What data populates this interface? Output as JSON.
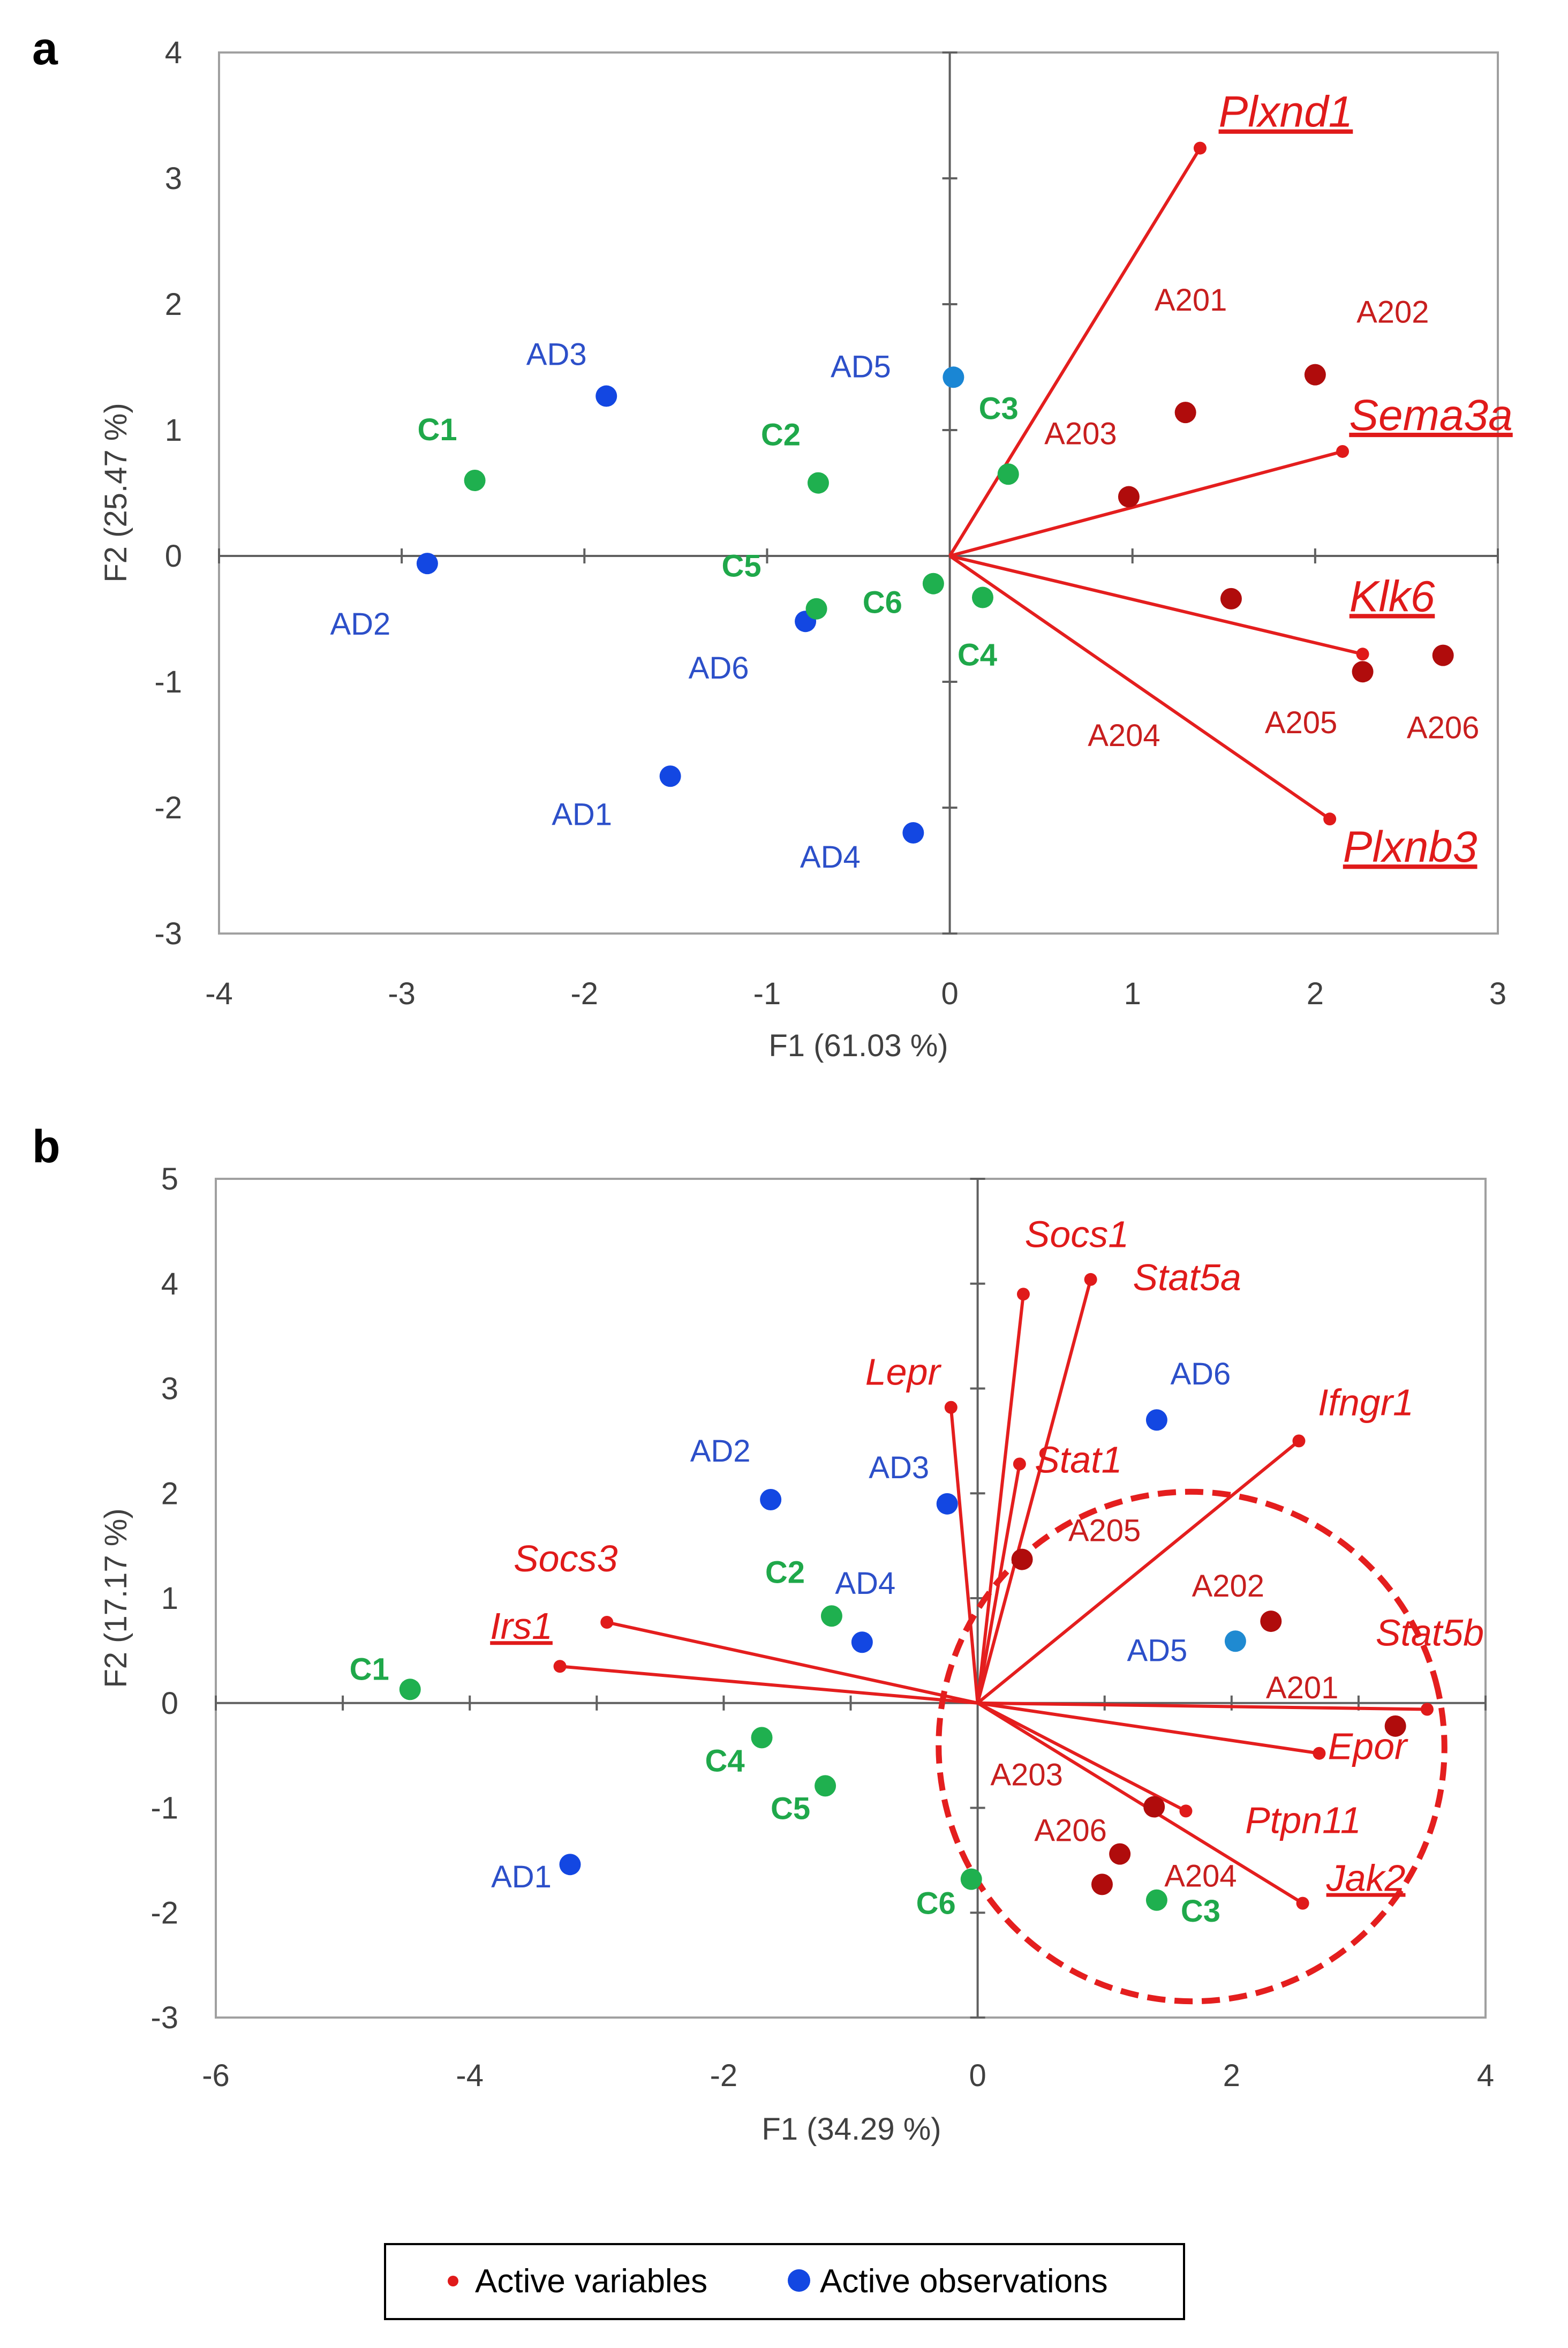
{
  "colors": {
    "variable": "#e01a1a",
    "variable_line": "#e41e1e",
    "sample_obs": "#b00c0c",
    "sample_label": "#c81e1e",
    "ad_obs": "#1347e2",
    "ad_label": "#2c4fc9",
    "ctrl_obs": "#1fb04f",
    "ctrl_label": "#1fa84a",
    "ad5_obs_a": "#1a86d4",
    "ad5_obs_b": "#1f8ad1",
    "axis": "#606060",
    "border": "#a0a0a0"
  },
  "legend": {
    "variables_label": "Active variables",
    "observations_label": "Active observations"
  },
  "chart_data": [
    {
      "type": "scatter",
      "panel_label": "a",
      "title": "",
      "xlabel": "F1 (61.03 %)",
      "ylabel": "F2 (25.47 %)",
      "xlim": [
        -4,
        3
      ],
      "ylim": [
        -3,
        4
      ],
      "x_ticks": [
        "-4",
        "-3",
        "-2",
        "-1",
        "0",
        "1",
        "2",
        "3"
      ],
      "y_ticks": [
        "4",
        "3",
        "2",
        "1",
        "0",
        "-1",
        "-2",
        "-3"
      ],
      "variables": [
        {
          "name": "Plxnd1",
          "x": 1.37,
          "y": 3.24,
          "underline": true
        },
        {
          "name": "Sema3a",
          "x": 2.15,
          "y": 0.83,
          "underline": true
        },
        {
          "name": "Klk6",
          "x": 2.26,
          "y": -0.78,
          "underline": true
        },
        {
          "name": "Plxnb3",
          "x": 2.08,
          "y": -2.09,
          "underline": true
        }
      ],
      "observations": [
        {
          "name": "A201",
          "x": 1.29,
          "y": 1.14,
          "group": "sample"
        },
        {
          "name": "A202",
          "x": 2.0,
          "y": 1.44,
          "group": "sample"
        },
        {
          "name": "A203",
          "x": 0.98,
          "y": 0.47,
          "group": "sample"
        },
        {
          "name": "A204",
          "x": 1.54,
          "y": -0.34,
          "group": "sample"
        },
        {
          "name": "A205",
          "x": 2.26,
          "y": -0.92,
          "group": "sample"
        },
        {
          "name": "A206",
          "x": 2.7,
          "y": -0.79,
          "group": "sample"
        },
        {
          "name": "AD1",
          "x": -1.53,
          "y": -1.75,
          "group": "ad"
        },
        {
          "name": "AD2",
          "x": -2.86,
          "y": -0.06,
          "group": "ad"
        },
        {
          "name": "AD3",
          "x": -1.88,
          "y": 1.27,
          "group": "ad"
        },
        {
          "name": "AD4",
          "x": -0.2,
          "y": -2.2,
          "group": "ad"
        },
        {
          "name": "AD5",
          "x": 0.02,
          "y": 1.42,
          "group": "ad5"
        },
        {
          "name": "AD6",
          "x": -0.79,
          "y": -0.52,
          "group": "ad"
        },
        {
          "name": "C1",
          "x": -2.6,
          "y": 0.6,
          "group": "ctrl"
        },
        {
          "name": "C2",
          "x": -0.72,
          "y": 0.58,
          "group": "ctrl"
        },
        {
          "name": "C3",
          "x": 0.32,
          "y": 0.65,
          "group": "ctrl"
        },
        {
          "name": "C4",
          "x": 0.18,
          "y": -0.33,
          "group": "ctrl"
        },
        {
          "name": "C5",
          "x": -0.73,
          "y": -0.42,
          "group": "ctrl"
        },
        {
          "name": "C6",
          "x": -0.09,
          "y": -0.22,
          "group": "ctrl"
        }
      ]
    },
    {
      "type": "scatter",
      "panel_label": "b",
      "title": "",
      "xlabel": "F1 (34.29 %)",
      "ylabel": "F2 (17.17 %)",
      "xlim": [
        -6,
        4
      ],
      "ylim": [
        -3,
        5
      ],
      "x_ticks": [
        "-6",
        "-4",
        "-2",
        "0",
        "2",
        "4"
      ],
      "y_ticks": [
        "5",
        "4",
        "3",
        "2",
        "1",
        "0",
        "-1",
        "-2",
        "-3"
      ],
      "variables": [
        {
          "name": "Socs1",
          "x": 0.36,
          "y": 3.9,
          "underline": false
        },
        {
          "name": "Stat5a",
          "x": 0.89,
          "y": 4.04,
          "underline": false
        },
        {
          "name": "Lepr",
          "x": -0.21,
          "y": 2.82,
          "underline": false
        },
        {
          "name": "Stat1",
          "x": 0.33,
          "y": 2.28,
          "underline": false
        },
        {
          "name": "Ifngr1",
          "x": 2.53,
          "y": 2.5,
          "underline": false
        },
        {
          "name": "Socs3",
          "x": -2.92,
          "y": 0.77,
          "underline": false
        },
        {
          "name": "Irs1",
          "x": -3.29,
          "y": 0.35,
          "underline": true
        },
        {
          "name": "Stat5b",
          "x": 3.54,
          "y": -0.06,
          "underline": false
        },
        {
          "name": "Epor",
          "x": 2.69,
          "y": -0.48,
          "underline": false
        },
        {
          "name": "Ptpn11",
          "x": 1.64,
          "y": -1.03,
          "underline": false
        },
        {
          "name": "Jak2",
          "x": 2.56,
          "y": -1.91,
          "underline": true
        }
      ],
      "observations": [
        {
          "name": "A201",
          "x": 3.29,
          "y": -0.22,
          "group": "sample"
        },
        {
          "name": "A202",
          "x": 2.31,
          "y": 0.78,
          "group": "sample"
        },
        {
          "name": "A203",
          "x": 1.39,
          "y": -0.99,
          "group": "sample"
        },
        {
          "name": "A204",
          "x": 0.98,
          "y": -1.73,
          "group": "sample"
        },
        {
          "name": "A205",
          "x": 0.35,
          "y": 1.37,
          "group": "sample"
        },
        {
          "name": "A206",
          "x": 1.12,
          "y": -1.44,
          "group": "sample"
        },
        {
          "name": "AD1",
          "x": -3.21,
          "y": -1.54,
          "group": "ad"
        },
        {
          "name": "AD2",
          "x": -1.63,
          "y": 1.94,
          "group": "ad"
        },
        {
          "name": "AD3",
          "x": -0.24,
          "y": 1.9,
          "group": "ad"
        },
        {
          "name": "AD4",
          "x": -0.91,
          "y": 0.58,
          "group": "ad"
        },
        {
          "name": "AD5",
          "x": 2.03,
          "y": 0.59,
          "group": "ad5"
        },
        {
          "name": "AD6",
          "x": 1.41,
          "y": 2.7,
          "group": "ad"
        },
        {
          "name": "C1",
          "x": -4.47,
          "y": 0.13,
          "group": "ctrl"
        },
        {
          "name": "C2",
          "x": -1.15,
          "y": 0.83,
          "group": "ctrl"
        },
        {
          "name": "C3",
          "x": 1.41,
          "y": -1.88,
          "group": "ctrl"
        },
        {
          "name": "C4",
          "x": -1.7,
          "y": -0.33,
          "group": "ctrl"
        },
        {
          "name": "C5",
          "x": -1.2,
          "y": -0.79,
          "group": "ctrl"
        },
        {
          "name": "C6",
          "x": -0.05,
          "y": -1.68,
          "group": "ctrl"
        }
      ]
    }
  ]
}
